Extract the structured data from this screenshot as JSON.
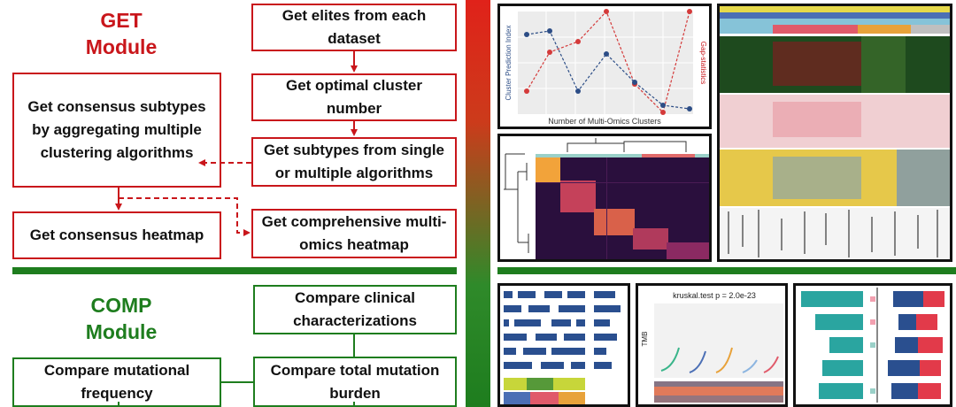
{
  "get_module": {
    "title_line1": "GET",
    "title_line2": "Module",
    "boxes": {
      "elites": "Get elites from each dataset",
      "optimal": "Get optimal cluster number",
      "subtypes": "Get subtypes from single or multiple algorithms",
      "consensus_subtypes": "Get consensus subtypes by aggregating multiple clustering algorithms",
      "consensus_heatmap": "Get consensus heatmap",
      "comprehensive": "Get comprehensive multi-omics heatmap"
    }
  },
  "comp_module": {
    "title_line1": "COMP",
    "title_line2": "Module",
    "boxes": {
      "clinical": "Compare clinical characterizations",
      "mutational": "Compare mutational frequency",
      "total_mutation": "Compare total mutation burden"
    }
  },
  "plots": {
    "cluster_plot": {
      "xlabel": "Number of Multi-Omics Clusters",
      "ylabel_left": "Cluster Prediction Index",
      "ylabel_right": "Gap-statistics"
    },
    "tmb_plot": {
      "title": "kruskal.test p = 2.0e-23",
      "ylabel": "TMB"
    }
  },
  "colors": {
    "get_red": "#c9161b",
    "comp_green": "#1e7d1e",
    "divider_green": "#1e7d1e"
  }
}
